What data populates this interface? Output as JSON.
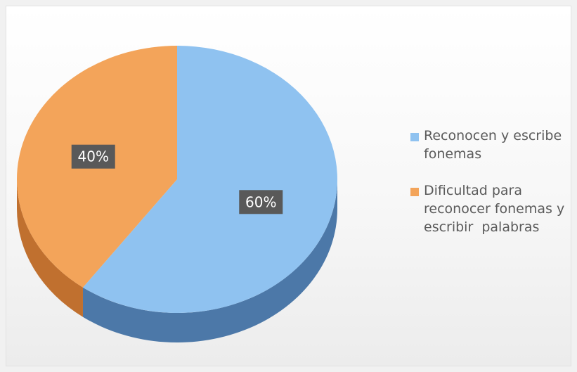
{
  "chart_data": {
    "type": "pie",
    "style": "3d",
    "title": "",
    "categories": [
      "Reconocen y escribe fonemas",
      "Dificultad para reconocer fonemas y escribir  palabras"
    ],
    "values": [
      60,
      40
    ],
    "data_labels": [
      "60%",
      "40%"
    ],
    "colors": [
      "#8fc2f0",
      "#f3a45a"
    ],
    "side_colors": [
      "#4c78a8",
      "#c0702f"
    ],
    "label_box_color": "#595959",
    "legend_position": "right"
  }
}
